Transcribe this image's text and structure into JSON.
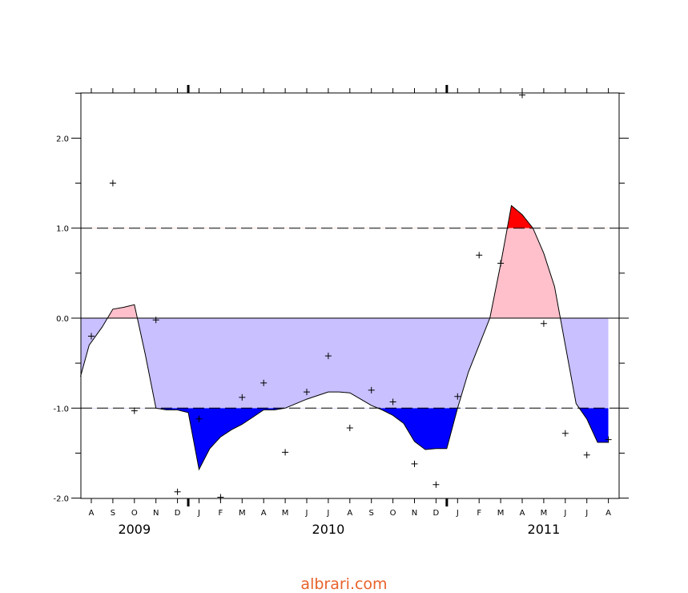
{
  "chart_data": {
    "type": "area",
    "title": "",
    "xlabel": "",
    "ylabel": "",
    "ylim": [
      -2.0,
      2.5
    ],
    "xlim": [
      -0.5,
      24.5
    ],
    "month_labels": [
      "A",
      "S",
      "O",
      "N",
      "D",
      "J",
      "F",
      "M",
      "A",
      "M",
      "J",
      "J",
      "A",
      "S",
      "O",
      "N",
      "D",
      "J",
      "F",
      "M",
      "A",
      "M",
      "J",
      "J",
      "A"
    ],
    "year_labels": [
      {
        "text": "2009",
        "x": 2
      },
      {
        "text": "2010",
        "x": 11
      },
      {
        "text": "2011",
        "x": 21
      }
    ],
    "year_boundaries": [
      4.5,
      16.5
    ],
    "y_ticks": [
      -2.0,
      -1.0,
      0.0,
      1.0,
      2.0
    ],
    "y_tick_labels": [
      "-2.0",
      "-1.0",
      "0.0",
      "1.0",
      "2.0"
    ],
    "thresholds": [
      1.0,
      -1.0
    ],
    "colors": {
      "above_zero": "#ffc0cb",
      "above_threshold": "#ff0000",
      "below_zero": "#c8c0ff",
      "below_threshold": "#0000ff"
    },
    "series": [
      {
        "kind": "smoothed_line",
        "x": [
          -0.5,
          -0.1,
          0.5,
          1.0,
          1.5,
          2.0,
          2.5,
          3.0,
          3.5,
          4.0,
          4.5,
          5.0,
          5.5,
          6.0,
          6.5,
          7.0,
          7.5,
          8.0,
          8.5,
          9.0,
          9.5,
          10.0,
          10.5,
          11.0,
          11.5,
          12.0,
          12.5,
          13.0,
          13.5,
          14.0,
          14.5,
          15.0,
          15.5,
          16.0,
          16.5,
          17.0,
          17.5,
          18.0,
          18.5,
          19.0,
          19.5,
          20.0,
          20.5,
          21.0,
          21.5,
          22.0,
          22.5,
          23.0,
          23.5,
          24.0
        ],
        "y": [
          -0.65,
          -0.3,
          -0.1,
          0.1,
          0.12,
          0.15,
          -0.4,
          -1.0,
          -1.02,
          -1.02,
          -1.05,
          -1.68,
          -1.45,
          -1.32,
          -1.24,
          -1.18,
          -1.1,
          -1.02,
          -1.02,
          -1.0,
          -0.95,
          -0.9,
          -0.86,
          -0.82,
          -0.82,
          -0.83,
          -0.9,
          -0.97,
          -1.02,
          -1.08,
          -1.17,
          -1.37,
          -1.46,
          -1.45,
          -1.45,
          -1.0,
          -0.6,
          -0.3,
          0.0,
          0.6,
          1.25,
          1.15,
          1.0,
          0.72,
          0.35,
          -0.3,
          -0.95,
          -1.12,
          -1.38,
          -1.38
        ]
      },
      {
        "kind": "monthly_points",
        "x": [
          0,
          1,
          2,
          3,
          4,
          5,
          6,
          7,
          8,
          9,
          10,
          11,
          12,
          13,
          14,
          15,
          16,
          17,
          18,
          19,
          20,
          21,
          22,
          23,
          24
        ],
        "y": [
          -0.2,
          1.5,
          -1.03,
          -0.02,
          -1.93,
          -1.12,
          -1.99,
          -0.88,
          -0.72,
          -1.49,
          -0.82,
          -0.42,
          -1.22,
          -0.8,
          -0.93,
          -1.62,
          -1.85,
          -0.87,
          0.7,
          0.61,
          2.48,
          -0.06,
          -1.28,
          -1.52,
          -1.35
        ]
      }
    ]
  },
  "watermark": "albrari.com"
}
